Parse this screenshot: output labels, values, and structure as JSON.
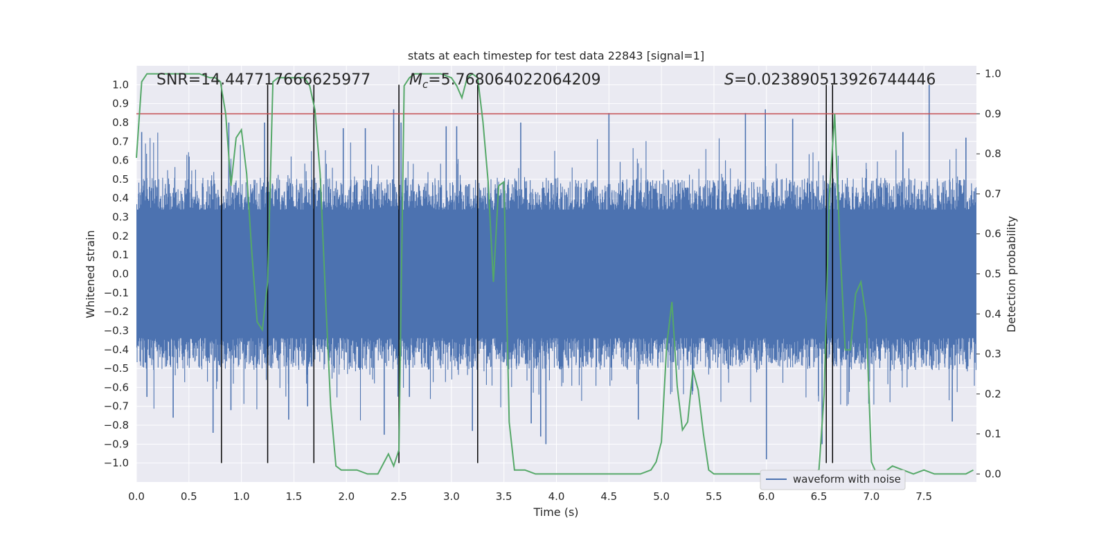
{
  "chart_data": {
    "type": "line",
    "title": "stats at each timestep for test data 22843 [signal=1]",
    "xlabel": "Time (s)",
    "ylabel": "Whitened strain",
    "ylabel_right": "Detection probability",
    "xlim": [
      0.0,
      8.0
    ],
    "ylim": [
      -1.1,
      1.1
    ],
    "ylim_right": [
      -0.02,
      1.02
    ],
    "x_ticks": [
      0.0,
      0.5,
      1.0,
      1.5,
      2.0,
      2.5,
      3.0,
      3.5,
      4.0,
      4.5,
      5.0,
      5.5,
      6.0,
      6.5,
      7.0,
      7.5
    ],
    "x_tick_labels": [
      "0.0",
      "0.5",
      "1.0",
      "1.5",
      "2.0",
      "2.5",
      "3.0",
      "3.5",
      "4.0",
      "4.5",
      "5.0",
      "5.5",
      "6.0",
      "6.5",
      "7.0",
      "7.5"
    ],
    "y_ticks": [
      -1.0,
      -0.9,
      -0.8,
      -0.7,
      -0.6,
      -0.5,
      -0.4,
      -0.3,
      -0.2,
      -0.1,
      0.0,
      0.1,
      0.2,
      0.3,
      0.4,
      0.5,
      0.6,
      0.7,
      0.8,
      0.9,
      1.0
    ],
    "y_tick_labels": [
      "−1.0",
      "−0.9",
      "−0.8",
      "−0.7",
      "−0.6",
      "−0.5",
      "−0.4",
      "−0.3",
      "−0.2",
      "−0.1",
      "0.0",
      "0.1",
      "0.2",
      "0.3",
      "0.4",
      "0.5",
      "0.6",
      "0.7",
      "0.8",
      "0.9",
      "1.0"
    ],
    "y_right_ticks": [
      0.0,
      0.1,
      0.2,
      0.3,
      0.4,
      0.5,
      0.6,
      0.7,
      0.8,
      0.9,
      1.0
    ],
    "y_right_tick_labels": [
      "0.0",
      "0.1",
      "0.2",
      "0.3",
      "0.4",
      "0.5",
      "0.6",
      "0.7",
      "0.8",
      "0.9",
      "1.0"
    ],
    "annotations": {
      "snr": "SNR=14.447717666625977",
      "mc_symbol": "M",
      "mc_sub": "c",
      "mc_value": "=5.768064022064209",
      "s_symbol": "S",
      "s_value": "=0.023890513926744446"
    },
    "threshold": {
      "name": "detection threshold",
      "y_right": 0.9,
      "color": "#c44e52"
    },
    "vertical_markers_x": [
      0.81,
      1.25,
      1.69,
      2.5,
      3.25,
      6.57,
      6.63
    ],
    "legend": {
      "location": "lower-right",
      "entries": [
        {
          "label": "waveform with noise",
          "color": "#4c72b0"
        }
      ]
    },
    "series": [
      {
        "name": "waveform with noise",
        "axis": "left",
        "color": "#4c72b0",
        "style": "dense-noise",
        "x_range": [
          0.0,
          8.0
        ],
        "core_amplitude": 0.4,
        "peaks": [
          {
            "x": 0.05,
            "y": 0.75
          },
          {
            "x": 0.1,
            "y": -0.65
          },
          {
            "x": 0.35,
            "y": -0.76
          },
          {
            "x": 0.73,
            "y": -0.84
          },
          {
            "x": 0.88,
            "y": 0.8
          },
          {
            "x": 0.9,
            "y": -0.72
          },
          {
            "x": 1.22,
            "y": 0.8
          },
          {
            "x": 1.45,
            "y": -0.77
          },
          {
            "x": 1.63,
            "y": -0.7
          },
          {
            "x": 1.97,
            "y": 0.77
          },
          {
            "x": 2.18,
            "y": 0.77
          },
          {
            "x": 2.36,
            "y": -0.85
          },
          {
            "x": 2.45,
            "y": 0.87
          },
          {
            "x": 2.52,
            "y": 0.8
          },
          {
            "x": 2.6,
            "y": -0.65
          },
          {
            "x": 2.95,
            "y": 0.78
          },
          {
            "x": 3.05,
            "y": 0.78
          },
          {
            "x": 3.2,
            "y": -0.83
          },
          {
            "x": 3.66,
            "y": 0.8
          },
          {
            "x": 3.76,
            "y": -0.79
          },
          {
            "x": 3.85,
            "y": -0.86
          },
          {
            "x": 3.9,
            "y": -0.9
          },
          {
            "x": 4.5,
            "y": 0.85
          },
          {
            "x": 4.78,
            "y": -0.77
          },
          {
            "x": 5.8,
            "y": 0.85
          },
          {
            "x": 5.99,
            "y": 0.87
          },
          {
            "x": 6.0,
            "y": -0.98
          },
          {
            "x": 6.25,
            "y": 0.82
          },
          {
            "x": 6.57,
            "y": 0.81
          },
          {
            "x": 6.53,
            "y": -0.9
          },
          {
            "x": 7.3,
            "y": 0.75
          },
          {
            "x": 7.55,
            "y": 1.0
          },
          {
            "x": 7.77,
            "y": -0.78
          },
          {
            "x": 7.9,
            "y": 0.72
          }
        ]
      },
      {
        "name": "detection probability",
        "axis": "right",
        "color": "#55a868",
        "x": [
          0.0,
          0.05,
          0.1,
          0.2,
          0.3,
          0.4,
          0.5,
          0.6,
          0.7,
          0.75,
          0.8,
          0.85,
          0.9,
          0.95,
          1.0,
          1.05,
          1.1,
          1.15,
          1.2,
          1.25,
          1.3,
          1.35,
          1.4,
          1.5,
          1.6,
          1.65,
          1.7,
          1.75,
          1.8,
          1.85,
          1.9,
          1.95,
          2.0,
          2.1,
          2.2,
          2.3,
          2.4,
          2.45,
          2.5,
          2.55,
          2.6,
          2.65,
          2.7,
          2.8,
          2.9,
          3.0,
          3.05,
          3.1,
          3.15,
          3.2,
          3.25,
          3.3,
          3.35,
          3.4,
          3.45,
          3.5,
          3.55,
          3.6,
          3.7,
          3.8,
          4.0,
          4.2,
          4.5,
          4.7,
          4.8,
          4.9,
          4.95,
          5.0,
          5.05,
          5.1,
          5.15,
          5.2,
          5.25,
          5.3,
          5.35,
          5.4,
          5.45,
          5.5,
          5.6,
          5.8,
          6.0,
          6.2,
          6.4,
          6.5,
          6.55,
          6.6,
          6.65,
          6.7,
          6.75,
          6.8,
          6.85,
          6.9,
          6.95,
          7.0,
          7.05,
          7.1,
          7.2,
          7.3,
          7.4,
          7.5,
          7.6,
          7.8,
          7.9,
          7.97
        ],
        "values": [
          0.79,
          0.98,
          1.0,
          1.0,
          1.0,
          1.0,
          1.0,
          1.0,
          0.99,
          0.99,
          0.98,
          0.9,
          0.72,
          0.84,
          0.86,
          0.75,
          0.55,
          0.38,
          0.36,
          0.48,
          0.98,
          0.99,
          0.99,
          0.99,
          0.99,
          0.97,
          0.91,
          0.75,
          0.45,
          0.17,
          0.02,
          0.01,
          0.01,
          0.01,
          0.0,
          0.0,
          0.05,
          0.02,
          0.06,
          0.97,
          0.99,
          1.0,
          1.0,
          1.0,
          1.0,
          0.99,
          0.97,
          0.94,
          0.99,
          1.0,
          0.99,
          0.88,
          0.73,
          0.48,
          0.72,
          0.73,
          0.13,
          0.01,
          0.01,
          0.0,
          0.0,
          0.0,
          0.0,
          0.0,
          0.0,
          0.01,
          0.03,
          0.08,
          0.32,
          0.43,
          0.22,
          0.11,
          0.13,
          0.26,
          0.21,
          0.1,
          0.01,
          0.0,
          0.0,
          0.0,
          0.0,
          0.0,
          0.0,
          0.01,
          0.2,
          0.7,
          0.9,
          0.57,
          0.31,
          0.31,
          0.45,
          0.48,
          0.39,
          0.03,
          0.0,
          0.0,
          0.02,
          0.01,
          0.0,
          0.01,
          0.0,
          0.0,
          0.0,
          0.01
        ]
      }
    ]
  }
}
